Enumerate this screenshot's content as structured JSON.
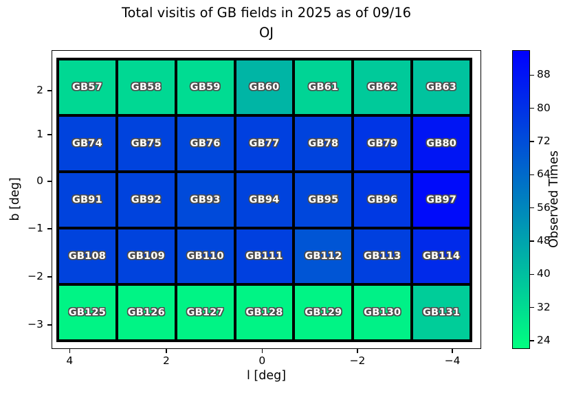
{
  "title": {
    "line1": "Total visitis of GB fields in 2025 as of 09/16",
    "line2": "OJ"
  },
  "axes": {
    "xlabel": "l [deg]",
    "ylabel": "b [deg]"
  },
  "colorbar": {
    "label": "Observed Times",
    "ticks": [
      88,
      80,
      72,
      64,
      56,
      48,
      40,
      32,
      24
    ],
    "vmin": 22,
    "vmax": 94,
    "top_color": "#0000FF",
    "bottom_color": "#00FF80"
  },
  "chart_data": {
    "type": "heatmap",
    "title": "Total visitis of GB fields in 2025 as of 09/16 OJ",
    "xlabel": "l [deg]",
    "ylabel": "b [deg]",
    "colorbar_label": "Observed Times",
    "colormap": "winter (green = low, blue = high)",
    "value_range": [
      22,
      94
    ],
    "x_tick_labels": [
      "4",
      "2",
      "0",
      "−2",
      "−4"
    ],
    "y_tick_labels": [
      "2",
      "1",
      "0",
      "−1",
      "−2",
      "−3"
    ],
    "colorbar_tick_values": [
      88,
      80,
      72,
      64,
      56,
      48,
      40,
      32,
      24
    ],
    "grid_shape": {
      "rows": 5,
      "cols": 7
    },
    "rows": [
      {
        "cells": [
          {
            "label": "GB57",
            "value": 33,
            "color": "#00D893"
          },
          {
            "label": "GB58",
            "value": 33,
            "color": "#00D893"
          },
          {
            "label": "GB59",
            "value": 32,
            "color": "#00DC92"
          },
          {
            "label": "GB60",
            "value": 43,
            "color": "#00B5A5"
          },
          {
            "label": "GB61",
            "value": 34,
            "color": "#00D495"
          },
          {
            "label": "GB62",
            "value": 37,
            "color": "#00CA9A"
          },
          {
            "label": "GB63",
            "value": 39,
            "color": "#00C39E"
          }
        ]
      },
      {
        "cells": [
          {
            "label": "GB74",
            "value": 75,
            "color": "#0043DD"
          },
          {
            "label": "GB75",
            "value": 75,
            "color": "#0043DD"
          },
          {
            "label": "GB76",
            "value": 74,
            "color": "#0047DC"
          },
          {
            "label": "GB77",
            "value": 76,
            "color": "#0040DF"
          },
          {
            "label": "GB78",
            "value": 75,
            "color": "#0043DD"
          },
          {
            "label": "GB79",
            "value": 79,
            "color": "#0035E5"
          },
          {
            "label": "GB80",
            "value": 88,
            "color": "#0015F4"
          }
        ]
      },
      {
        "cells": [
          {
            "label": "GB91",
            "value": 75,
            "color": "#0043DD"
          },
          {
            "label": "GB92",
            "value": 75,
            "color": "#0043DD"
          },
          {
            "label": "GB93",
            "value": 73,
            "color": "#004ADA"
          },
          {
            "label": "GB94",
            "value": 75,
            "color": "#0043DD"
          },
          {
            "label": "GB95",
            "value": 74,
            "color": "#0047DC"
          },
          {
            "label": "GB96",
            "value": 78,
            "color": "#0039E3"
          },
          {
            "label": "GB97",
            "value": 91,
            "color": "#000BFA"
          }
        ]
      },
      {
        "cells": [
          {
            "label": "GB108",
            "value": 75,
            "color": "#0043DD"
          },
          {
            "label": "GB109",
            "value": 75,
            "color": "#0043DD"
          },
          {
            "label": "GB110",
            "value": 74,
            "color": "#0047DC"
          },
          {
            "label": "GB111",
            "value": 76,
            "color": "#0040DF"
          },
          {
            "label": "GB112",
            "value": 70,
            "color": "#0055D5"
          },
          {
            "label": "GB113",
            "value": 76,
            "color": "#0040DF"
          },
          {
            "label": "GB114",
            "value": 82,
            "color": "#002AEA"
          }
        ]
      },
      {
        "cells": [
          {
            "label": "GB125",
            "value": 25,
            "color": "#00F485"
          },
          {
            "label": "GB126",
            "value": 25,
            "color": "#00F485"
          },
          {
            "label": "GB127",
            "value": 25,
            "color": "#00F485"
          },
          {
            "label": "GB128",
            "value": 25,
            "color": "#00F485"
          },
          {
            "label": "GB129",
            "value": 25,
            "color": "#00F485"
          },
          {
            "label": "GB130",
            "value": 26,
            "color": "#00F187"
          },
          {
            "label": "GB131",
            "value": 36,
            "color": "#00CD99"
          }
        ]
      }
    ]
  }
}
